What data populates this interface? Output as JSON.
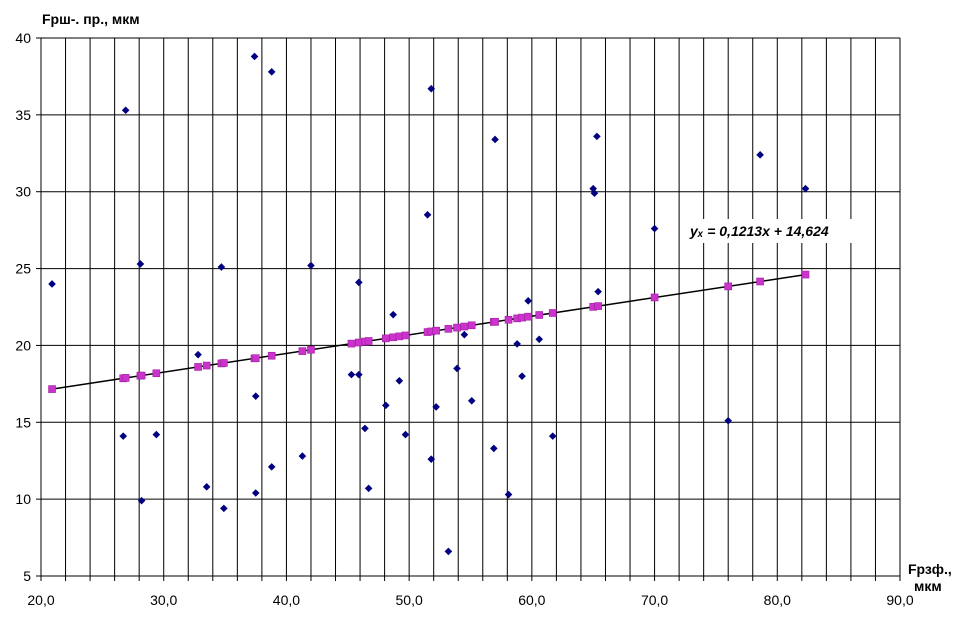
{
  "chart_data": {
    "type": "scatter",
    "ylabel": "Fрш-. пр., мкм",
    "xlabel_line1": "Fрзф.,",
    "xlabel_line2": "мкм",
    "equation": "yₓ = 0,1213x + 14,624",
    "xlim": [
      20,
      90
    ],
    "ylim": [
      5,
      40
    ],
    "x_major_step": 10,
    "x_minor_step": 2,
    "y_step": 5,
    "x_tick_labels": [
      "20,0",
      "30,0",
      "40,0",
      "50,0",
      "60,0",
      "70,0",
      "80,0",
      "90,0"
    ],
    "y_tick_labels": [
      "5",
      "10",
      "15",
      "20",
      "25",
      "30",
      "35",
      "40"
    ],
    "grid": true,
    "trend": {
      "slope": 0.1213,
      "intercept": 14.624,
      "x_start": 20.9,
      "x_end": 82.3
    },
    "colors": {
      "observed": "#000080",
      "fitted": "#cc33cc",
      "line": "#000000",
      "grid": "#000000"
    },
    "series": [
      {
        "marker": "diamond",
        "points": [
          [
            20.9,
            24.0
          ],
          [
            26.7,
            14.1
          ],
          [
            26.9,
            35.3
          ],
          [
            28.1,
            25.3
          ],
          [
            28.2,
            9.9
          ],
          [
            29.4,
            14.2
          ],
          [
            32.8,
            19.4
          ],
          [
            33.5,
            10.8
          ],
          [
            34.7,
            25.1
          ],
          [
            34.9,
            9.4
          ],
          [
            37.4,
            38.8
          ],
          [
            37.5,
            16.7
          ],
          [
            37.5,
            10.4
          ],
          [
            38.8,
            37.8
          ],
          [
            38.8,
            12.1
          ],
          [
            41.3,
            12.8
          ],
          [
            42.0,
            25.2
          ],
          [
            45.3,
            18.1
          ],
          [
            45.9,
            24.1
          ],
          [
            45.9,
            18.1
          ],
          [
            46.4,
            14.6
          ],
          [
            46.7,
            10.7
          ],
          [
            48.1,
            16.1
          ],
          [
            48.7,
            22.0
          ],
          [
            49.2,
            17.7
          ],
          [
            49.7,
            14.2
          ],
          [
            51.5,
            28.5
          ],
          [
            51.8,
            36.7
          ],
          [
            51.8,
            12.6
          ],
          [
            52.2,
            16.0
          ],
          [
            53.2,
            6.6
          ],
          [
            53.9,
            18.5
          ],
          [
            54.5,
            20.7
          ],
          [
            55.1,
            16.4
          ],
          [
            56.9,
            13.3
          ],
          [
            57.0,
            33.4
          ],
          [
            58.1,
            10.3
          ],
          [
            58.8,
            20.1
          ],
          [
            59.2,
            18.0
          ],
          [
            59.7,
            22.9
          ],
          [
            60.6,
            20.4
          ],
          [
            61.7,
            14.1
          ],
          [
            65.0,
            30.2
          ],
          [
            65.1,
            29.9
          ],
          [
            65.3,
            33.6
          ],
          [
            65.4,
            23.5
          ],
          [
            70.0,
            27.6
          ],
          [
            76.0,
            15.1
          ],
          [
            78.6,
            32.4
          ],
          [
            82.3,
            30.2
          ]
        ]
      },
      {
        "marker": "square",
        "points": [
          [
            20.9,
            17.16
          ],
          [
            26.7,
            17.86
          ],
          [
            26.9,
            17.89
          ],
          [
            28.1,
            18.03
          ],
          [
            28.2,
            18.04
          ],
          [
            29.4,
            18.19
          ],
          [
            32.8,
            18.6
          ],
          [
            33.5,
            18.69
          ],
          [
            34.7,
            18.83
          ],
          [
            34.9,
            18.86
          ],
          [
            37.4,
            19.16
          ],
          [
            37.5,
            19.17
          ],
          [
            38.8,
            19.33
          ],
          [
            41.3,
            19.63
          ],
          [
            42.0,
            19.72
          ],
          [
            45.3,
            20.12
          ],
          [
            45.9,
            20.19
          ],
          [
            46.4,
            20.25
          ],
          [
            46.7,
            20.29
          ],
          [
            48.1,
            20.46
          ],
          [
            48.7,
            20.53
          ],
          [
            49.2,
            20.59
          ],
          [
            49.7,
            20.65
          ],
          [
            51.5,
            20.87
          ],
          [
            51.8,
            20.91
          ],
          [
            52.2,
            20.96
          ],
          [
            53.2,
            21.08
          ],
          [
            53.9,
            21.16
          ],
          [
            54.5,
            21.23
          ],
          [
            55.1,
            21.31
          ],
          [
            56.9,
            21.53
          ],
          [
            57.0,
            21.54
          ],
          [
            58.1,
            21.67
          ],
          [
            58.8,
            21.76
          ],
          [
            59.2,
            21.81
          ],
          [
            59.7,
            21.87
          ],
          [
            60.6,
            21.98
          ],
          [
            61.7,
            22.11
          ],
          [
            65.0,
            22.51
          ],
          [
            65.4,
            22.56
          ],
          [
            70.0,
            23.12
          ],
          [
            76.0,
            23.84
          ],
          [
            78.6,
            24.16
          ],
          [
            82.3,
            24.61
          ]
        ]
      }
    ]
  }
}
